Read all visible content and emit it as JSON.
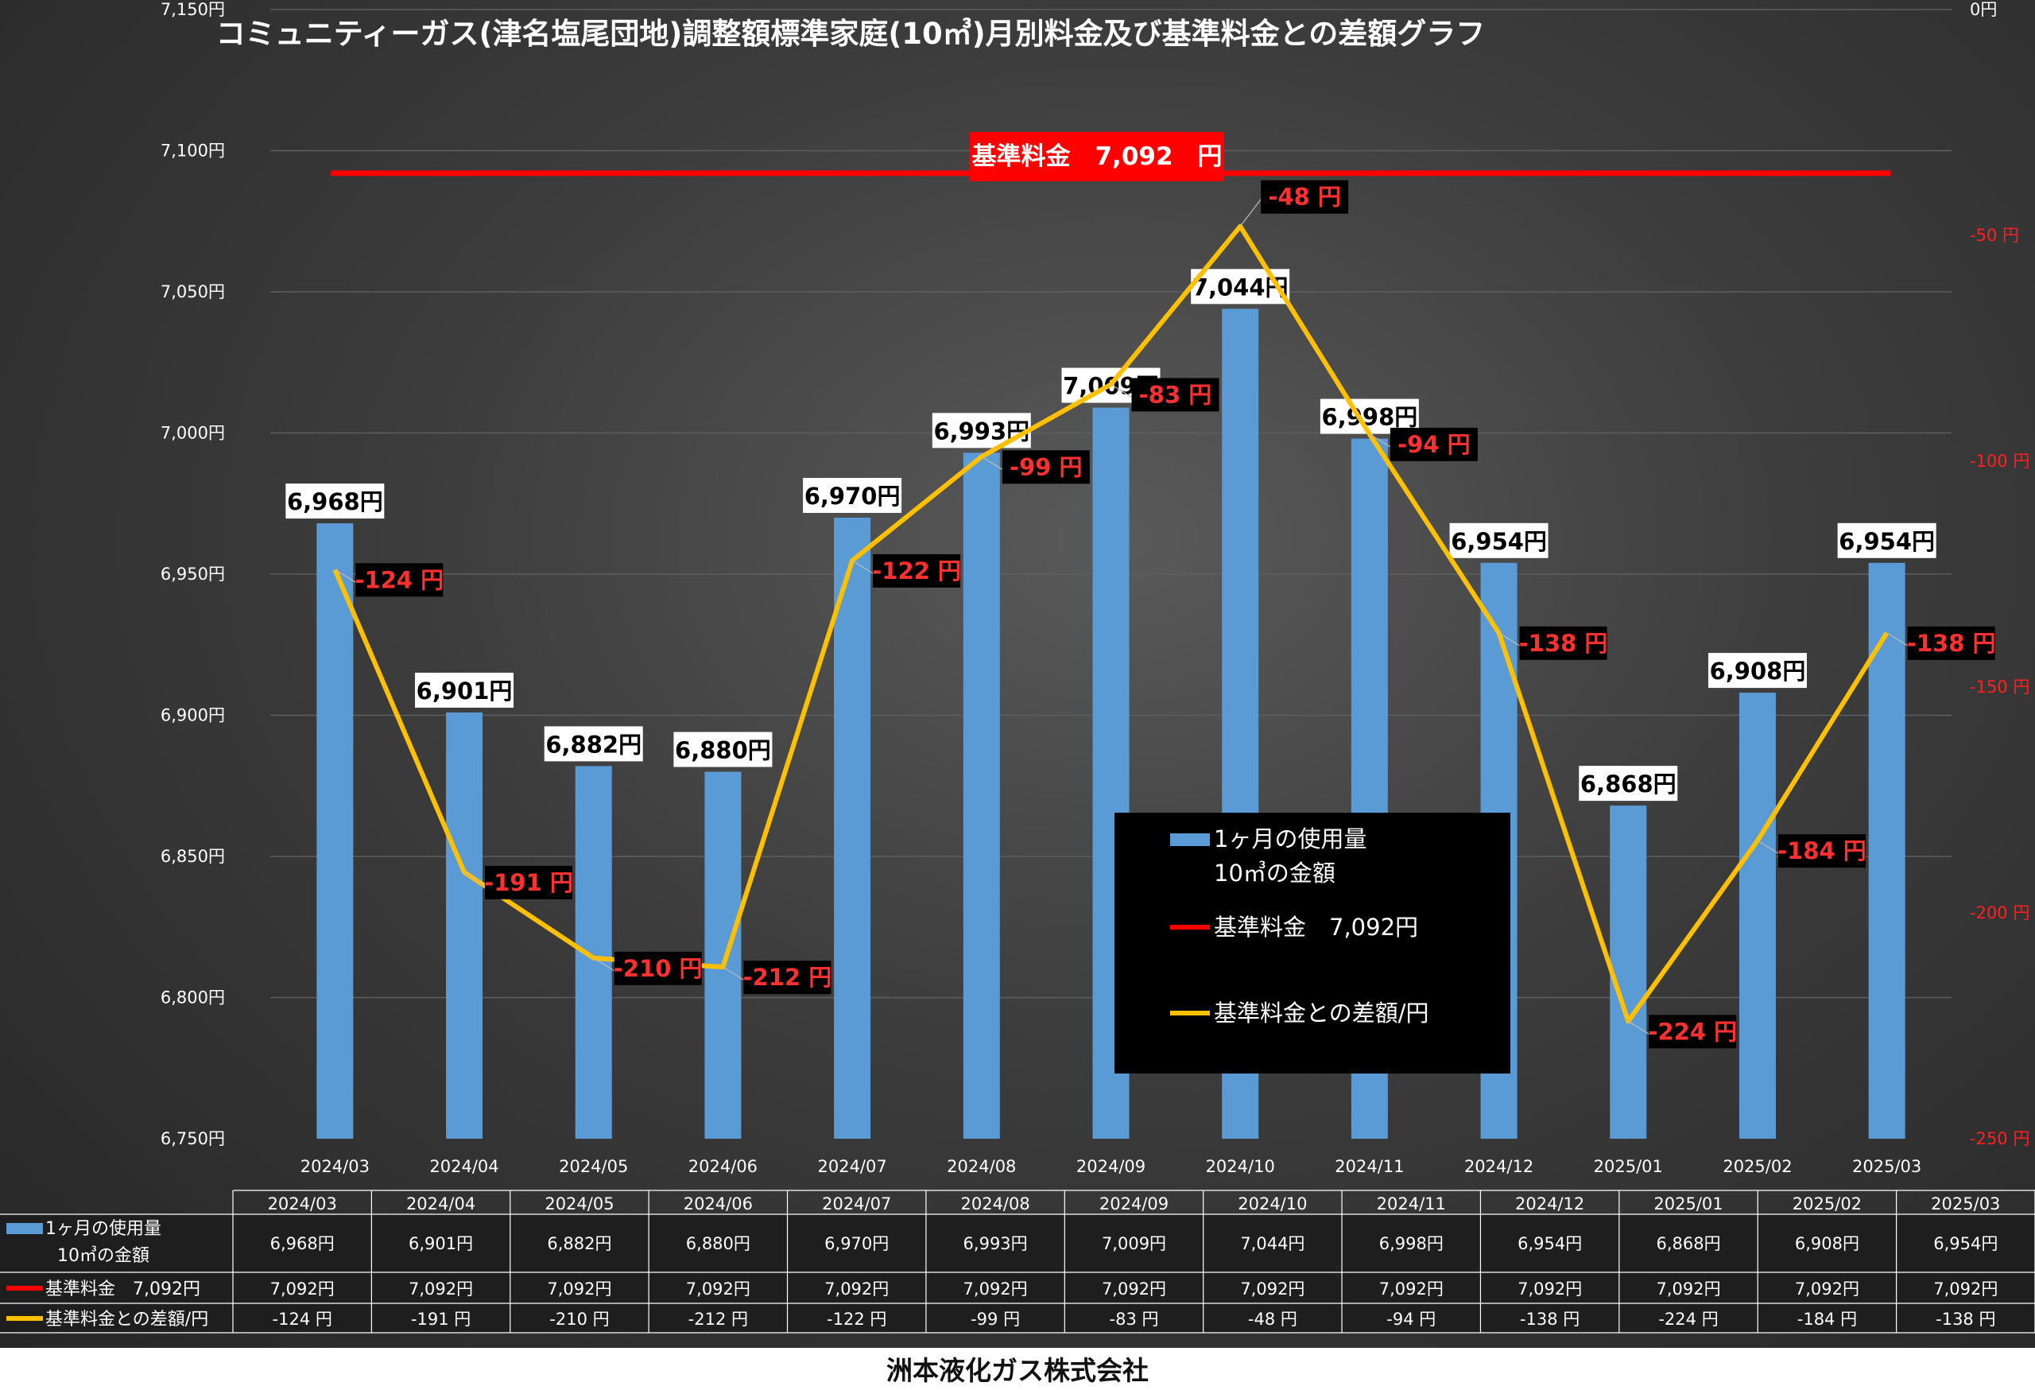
{
  "title": "コミュニティーガス(津名塩尾団地)調整額標準家庭(10㎥)月別料金及び基準料金との差額グラフ",
  "company": "洲本液化ガス株式会社",
  "colors": {
    "bar": "#5b9bd5",
    "base_line": "#ff0000",
    "diff_line": "#ffc000",
    "diff_label": "#ff3030"
  },
  "chart_data": {
    "type": "bar",
    "categories": [
      "2024/03",
      "2024/04",
      "2024/05",
      "2024/06",
      "2024/07",
      "2024/08",
      "2024/09",
      "2024/10",
      "2024/11",
      "2024/12",
      "2025/01",
      "2025/02",
      "2025/03"
    ],
    "series": [
      {
        "name": "1ヶ月の使用量\n10㎥の金額",
        "type": "bar",
        "axis": "left",
        "values": [
          6968,
          6901,
          6882,
          6880,
          6970,
          6993,
          7009,
          7044,
          6998,
          6954,
          6868,
          6908,
          6954
        ],
        "labels": [
          "6,968円",
          "6,901円",
          "6,882円",
          "6,880円",
          "6,970円",
          "6,993円",
          "7,009円",
          "7,044円",
          "6,998円",
          "6,954円",
          "6,868円",
          "6,908円",
          "6,954円"
        ]
      },
      {
        "name": "基準料金　7,092円",
        "type": "line",
        "axis": "left",
        "values": [
          7092,
          7092,
          7092,
          7092,
          7092,
          7092,
          7092,
          7092,
          7092,
          7092,
          7092,
          7092,
          7092
        ],
        "labels": [
          "7,092円",
          "7,092円",
          "7,092円",
          "7,092円",
          "7,092円",
          "7,092円",
          "7,092円",
          "7,092円",
          "7,092円",
          "7,092円",
          "7,092円",
          "7,092円",
          "7,092円"
        ]
      },
      {
        "name": "基準料金との差額/円",
        "type": "line",
        "axis": "right",
        "values": [
          -124,
          -191,
          -210,
          -212,
          -122,
          -99,
          -83,
          -48,
          -94,
          -138,
          -224,
          -184,
          -138
        ],
        "labels": [
          "-124 円",
          "-191 円",
          "-210 円",
          "-212 円",
          "-122 円",
          "-99 円",
          "-83 円",
          "-48 円",
          "-94 円",
          "-138 円",
          "-224 円",
          "-184 円",
          "-138 円"
        ]
      }
    ],
    "base_callout": "基準料金　7,092　円",
    "legend": [
      "1ヶ月の使用量",
      "10㎥の金額",
      "基準料金　7,092円",
      "基準料金との差額/円"
    ],
    "y_left": {
      "min": 6750,
      "max": 7150,
      "ticks": [
        "6,750円",
        "6,800円",
        "6,850円",
        "6,900円",
        "6,950円",
        "7,000円",
        "7,050円",
        "7,100円",
        "7,150円"
      ]
    },
    "y_right": {
      "min": -250,
      "max": 0,
      "ticks": [
        "-250 円",
        "-200 円",
        "-150 円",
        "-100 円",
        "-50 円",
        "0円"
      ]
    },
    "table": {
      "row_labels": [
        "1ヶ月の使用量",
        "10㎥の金額",
        "基準料金　7,092円",
        "基準料金との差額/円"
      ]
    },
    "grid": true,
    "legend_position": "center-right inside plot"
  }
}
